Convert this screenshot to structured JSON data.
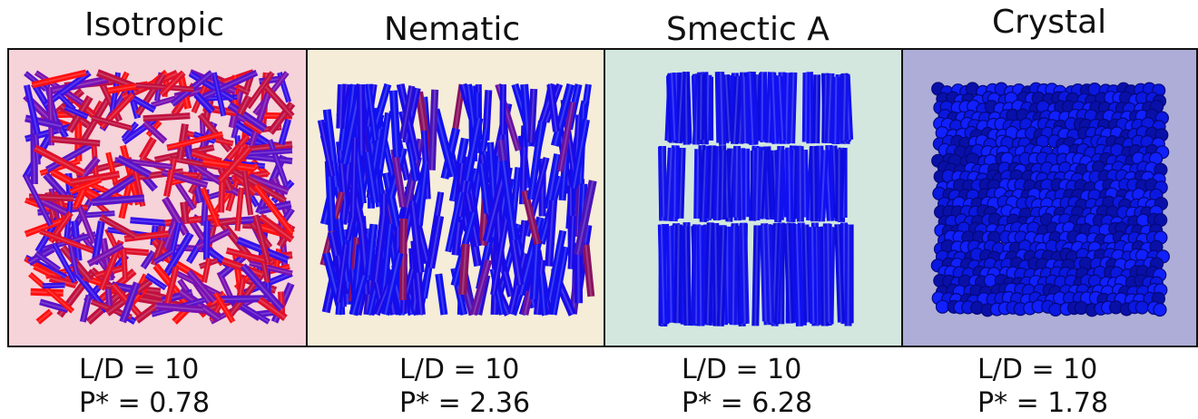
{
  "panels": [
    {
      "title": "Isotropic",
      "ld": "L/D = 10",
      "pressure": "P* = 0.78",
      "background": "#f6d2d9",
      "rod_palette": [
        "#ff1010",
        "#e0102a",
        "#c01040",
        "#7a10b0",
        "#5a12c8",
        "#3510e8"
      ]
    },
    {
      "title": "Nematic",
      "ld": "L/D = 10",
      "pressure": "P* = 2.36",
      "background": "#f5edd8",
      "rod_palette": [
        "#1010ee",
        "#1a0ae6",
        "#2a0cd0",
        "#4a12b8",
        "#6a10a0",
        "#8a1060"
      ]
    },
    {
      "title": "Smectic A",
      "ld": "L/D = 10",
      "pressure": "P* = 6.28",
      "background": "#d3e7de",
      "rod_palette": [
        "#1010f2",
        "#1212e8",
        "#0c0cdc"
      ]
    },
    {
      "title": "Crystal",
      "ld": "L/D = 10",
      "pressure": "P* = 1.78",
      "background": "#adadd8",
      "rod_palette": [
        "#1020ff",
        "#0a18e0",
        "#0810a8"
      ]
    }
  ]
}
